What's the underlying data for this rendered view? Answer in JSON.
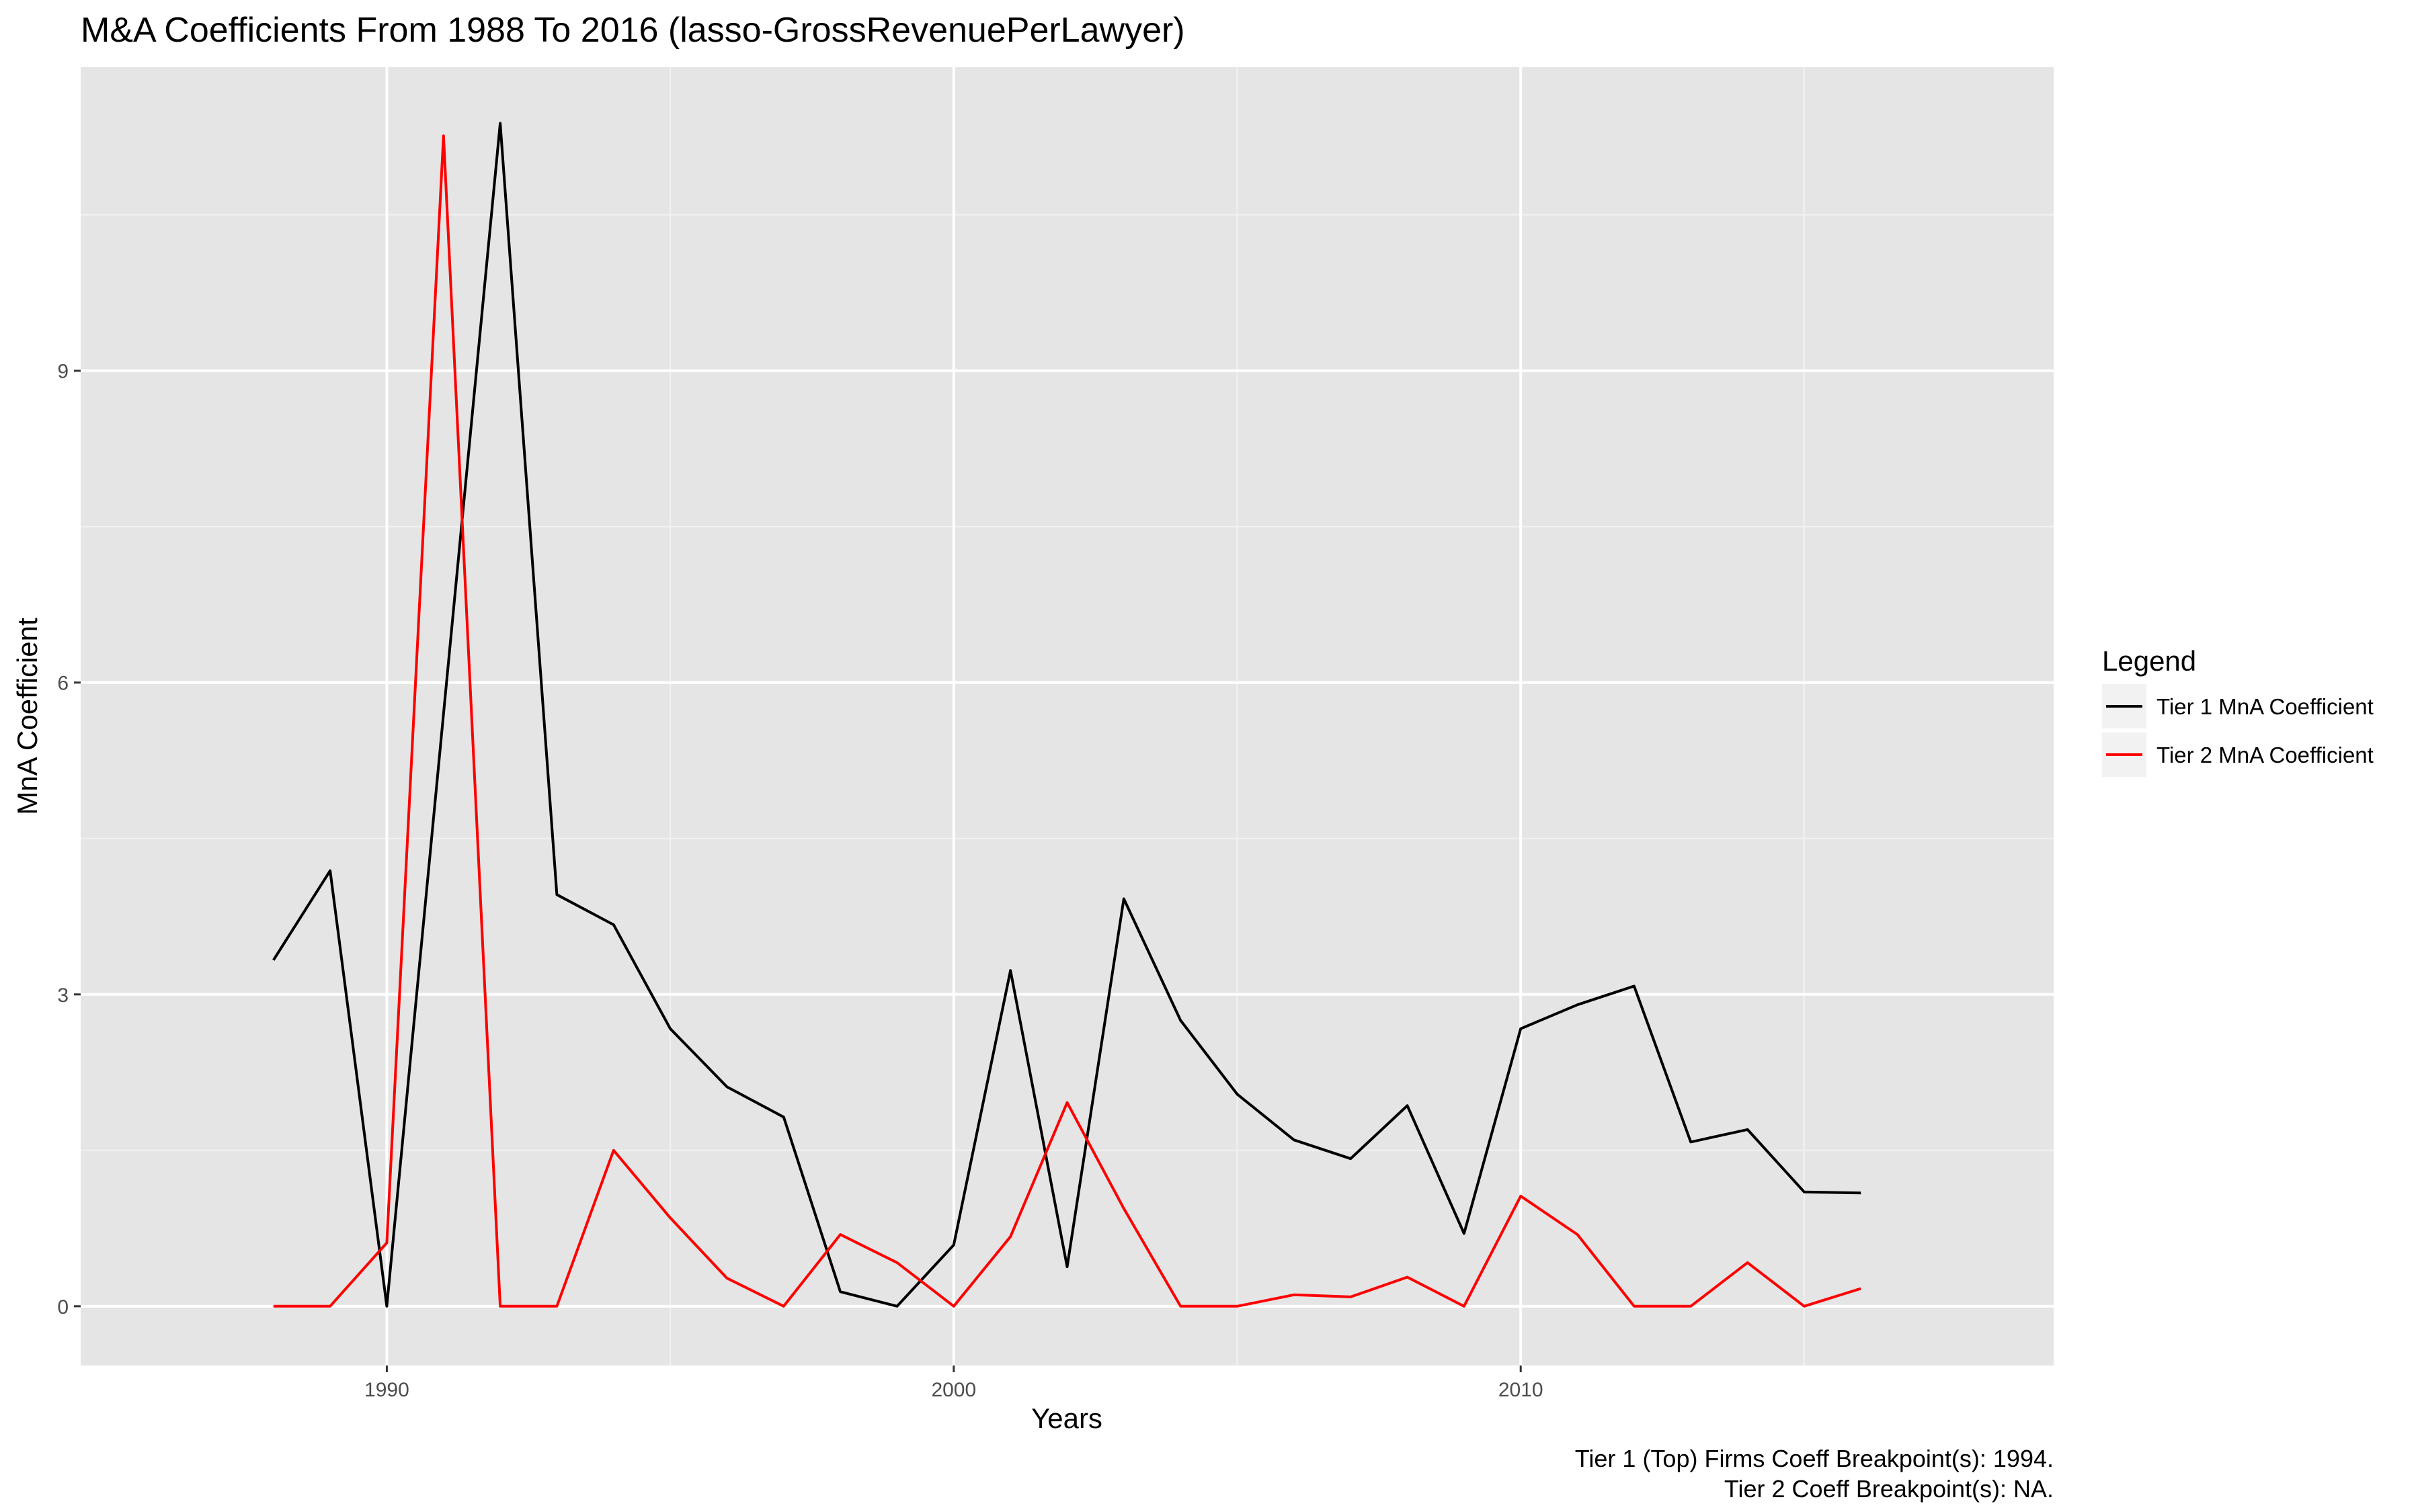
{
  "chart_data": {
    "type": "line",
    "title": "M&A Coefficients From 1988 To 2016 (lasso-GrossRevenuePerLawyer)",
    "xlabel": "Years",
    "ylabel": "MnA Coefficient",
    "xlim": [
      1984.6,
      2019.4
    ],
    "ylim": [
      -0.57,
      11.92
    ],
    "x_ticks": [
      1990,
      2000,
      2010
    ],
    "x_minor_ticks": [
      1995,
      2005,
      2015
    ],
    "y_ticks": [
      0,
      3,
      6,
      9
    ],
    "y_minor_ticks": [
      1.5,
      4.5,
      7.5,
      10.5
    ],
    "grid": true,
    "background": "#e5e5e5",
    "legend": {
      "title": "Legend",
      "position": "right"
    },
    "x": [
      1988,
      1989,
      1990,
      1991,
      1992,
      1993,
      1994,
      1995,
      1996,
      1997,
      1998,
      1999,
      2000,
      2001,
      2002,
      2003,
      2004,
      2005,
      2006,
      2007,
      2008,
      2009,
      2010,
      2011,
      2012,
      2013,
      2014,
      2015,
      2016
    ],
    "series": [
      {
        "name": "Tier 1 MnA Coefficient",
        "color": "#000000",
        "values": [
          3.33,
          4.19,
          0.0,
          5.7,
          11.38,
          3.96,
          3.67,
          2.67,
          2.11,
          1.82,
          0.14,
          0.0,
          0.59,
          3.23,
          0.38,
          3.92,
          2.75,
          2.04,
          1.6,
          1.42,
          1.93,
          0.7,
          2.67,
          2.9,
          3.08,
          1.58,
          1.7,
          1.1,
          1.09
        ]
      },
      {
        "name": "Tier 2 MnA Coefficient",
        "color": "#ff0000",
        "values": [
          0.0,
          0.0,
          0.61,
          11.26,
          0.0,
          0.0,
          1.5,
          0.85,
          0.27,
          0.0,
          0.69,
          0.42,
          0.0,
          0.67,
          1.96,
          0.94,
          0.0,
          0.0,
          0.11,
          0.09,
          0.28,
          0.0,
          1.06,
          0.69,
          0.0,
          0.0,
          0.42,
          0.0,
          0.17
        ]
      }
    ],
    "caption": [
      "Tier 1 (Top) Firms Coeff Breakpoint(s): 1994.",
      "Tier 2 Coeff Breakpoint(s): NA."
    ]
  }
}
